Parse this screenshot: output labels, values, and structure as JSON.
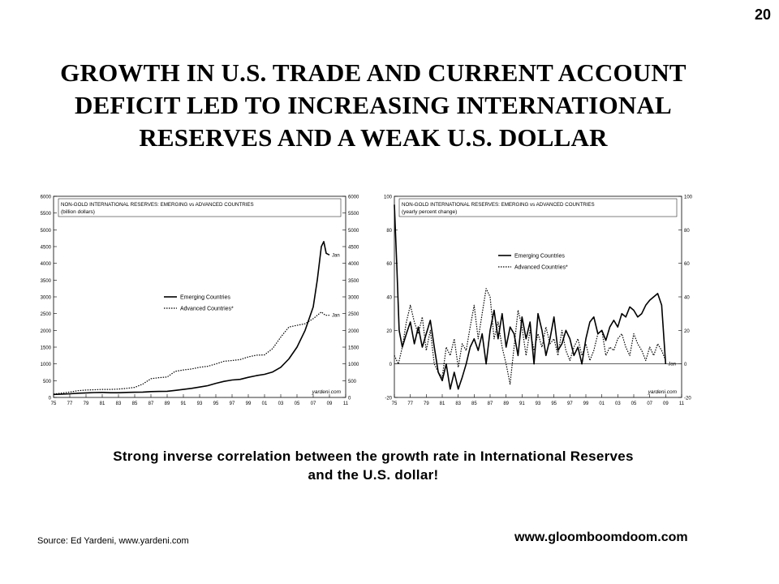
{
  "slide": {
    "page_number": "20",
    "title_lines": [
      "GROWTH IN U.S. TRADE AND CURRENT ACCOUNT",
      "DEFICIT LED TO INCREASING INTERNATIONAL",
      "RESERVES AND A WEAK U.S. DOLLAR"
    ],
    "caption_lines": [
      "Strong inverse correlation between the growth rate in International Reserves",
      "and the U.S. dollar!"
    ],
    "source": "Source: Ed Yardeni, www.yardeni.com",
    "website": "www.gloomboomdoom.com",
    "colors": {
      "background": "#ffffff",
      "text": "#000000",
      "chart_line": "#000000"
    }
  },
  "chart_data": [
    {
      "type": "line",
      "title": "NON-GOLD INTERNATIONAL RESERVES: EMERGING vs ADVANCED COUNTRIES",
      "subtitle": "(billion dollars)",
      "credit": "yardeni.com",
      "ylim": [
        0,
        6000
      ],
      "y_ticks": [
        "0",
        "500",
        "1000",
        "1500",
        "2000",
        "2500",
        "3000",
        "3500",
        "4000",
        "4500",
        "5000",
        "5500",
        "6000"
      ],
      "xlim": [
        1975,
        2011
      ],
      "x_ticks": [
        "75",
        "77",
        "79",
        "81",
        "83",
        "85",
        "87",
        "89",
        "91",
        "93",
        "95",
        "97",
        "99",
        "01",
        "03",
        "05",
        "07",
        "09",
        "11"
      ],
      "grid": false,
      "legend_position": "center",
      "end_labels": [
        "Jan",
        "Jan"
      ],
      "series": [
        {
          "name": "Emerging Countries",
          "style": "solid",
          "x": [
            1975,
            1976,
            1977,
            1978,
            1979,
            1980,
            1981,
            1982,
            1983,
            1984,
            1985,
            1986,
            1987,
            1988,
            1989,
            1990,
            1991,
            1992,
            1993,
            1994,
            1995,
            1996,
            1997,
            1998,
            1999,
            2000,
            2001,
            2002,
            2003,
            2004,
            2005,
            2006,
            2007,
            2007.5,
            2008,
            2008.3,
            2008.6,
            2009
          ],
          "values": [
            90,
            100,
            110,
            125,
            135,
            145,
            150,
            140,
            140,
            150,
            155,
            160,
            175,
            180,
            185,
            210,
            240,
            270,
            310,
            350,
            420,
            480,
            520,
            540,
            600,
            650,
            690,
            760,
            900,
            1150,
            1500,
            2000,
            2700,
            3500,
            4500,
            4650,
            4300,
            4250
          ]
        },
        {
          "name": "Advanced Countries*",
          "style": "dotted",
          "x": [
            1975,
            1976,
            1977,
            1978,
            1979,
            1980,
            1981,
            1982,
            1983,
            1984,
            1985,
            1986,
            1987,
            1988,
            1989,
            1990,
            1991,
            1992,
            1993,
            1994,
            1995,
            1996,
            1997,
            1998,
            1999,
            2000,
            2001,
            2002,
            2003,
            2004,
            2005,
            2006,
            2007,
            2008,
            2008.5,
            2009
          ],
          "values": [
            100,
            130,
            160,
            200,
            220,
            230,
            240,
            240,
            250,
            270,
            300,
            400,
            560,
            590,
            610,
            780,
            820,
            850,
            900,
            930,
            1000,
            1080,
            1100,
            1130,
            1210,
            1260,
            1270,
            1460,
            1800,
            2100,
            2150,
            2200,
            2350,
            2550,
            2450,
            2450
          ]
        }
      ]
    },
    {
      "type": "line",
      "title": "NON-GOLD INTERNATIONAL RESERVES: EMERGING vs ADVANCED COUNTRIES",
      "subtitle": "(yearly percent change)",
      "credit": "yardeni.com",
      "ylim": [
        -20,
        100
      ],
      "y_ticks": [
        "-20",
        "0",
        "20",
        "40",
        "60",
        "80",
        "100"
      ],
      "xlim": [
        1975,
        2011
      ],
      "x_ticks": [
        "75",
        "77",
        "79",
        "81",
        "83",
        "85",
        "87",
        "89",
        "91",
        "93",
        "95",
        "97",
        "99",
        "01",
        "03",
        "05",
        "07",
        "09",
        "11"
      ],
      "zero_line": true,
      "grid": false,
      "legend_position": "top-right",
      "end_labels": [
        "Jan"
      ],
      "series": [
        {
          "name": "Emerging Countries",
          "style": "solid",
          "x": [
            1975,
            1975.3,
            1975.6,
            1976,
            1976.5,
            1977,
            1977.5,
            1978,
            1978.5,
            1979,
            1979.5,
            1980,
            1980.5,
            1981,
            1981.5,
            1982,
            1982.5,
            1983,
            1983.5,
            1984,
            1984.5,
            1985,
            1985.5,
            1986,
            1986.5,
            1987,
            1987.5,
            1988,
            1988.5,
            1989,
            1989.5,
            1990,
            1990.5,
            1991,
            1991.5,
            1992,
            1992.5,
            1993,
            1993.5,
            1994,
            1994.5,
            1995,
            1995.5,
            1996,
            1996.5,
            1997,
            1997.5,
            1998,
            1998.5,
            1999,
            1999.5,
            2000,
            2000.5,
            2001,
            2001.5,
            2002,
            2002.5,
            2003,
            2003.5,
            2004,
            2004.5,
            2005,
            2005.5,
            2006,
            2006.5,
            2007,
            2007.5,
            2008,
            2008.5,
            2009
          ],
          "values": [
            95,
            60,
            20,
            10,
            18,
            25,
            12,
            22,
            10,
            18,
            26,
            10,
            -5,
            -10,
            0,
            -15,
            -5,
            -15,
            -8,
            0,
            10,
            15,
            8,
            18,
            0,
            20,
            32,
            15,
            30,
            10,
            22,
            18,
            5,
            28,
            15,
            25,
            0,
            30,
            20,
            5,
            15,
            28,
            8,
            12,
            20,
            15,
            5,
            10,
            0,
            15,
            25,
            28,
            18,
            20,
            14,
            22,
            26,
            22,
            30,
            28,
            34,
            32,
            28,
            30,
            35,
            38,
            40,
            42,
            35,
            0
          ]
        },
        {
          "name": "Advanced Countries*",
          "style": "dotted",
          "x": [
            1975,
            1975.5,
            1976,
            1976.5,
            1977,
            1977.5,
            1978,
            1978.5,
            1979,
            1979.5,
            1980,
            1980.5,
            1981,
            1981.5,
            1982,
            1982.5,
            1983,
            1983.5,
            1984,
            1984.5,
            1985,
            1985.5,
            1986,
            1986.5,
            1987,
            1987.5,
            1988,
            1988.5,
            1989,
            1989.5,
            1990,
            1990.5,
            1991,
            1991.5,
            1992,
            1992.5,
            1993,
            1993.5,
            1994,
            1994.5,
            1995,
            1995.5,
            1996,
            1996.5,
            1997,
            1997.5,
            1998,
            1998.5,
            1999,
            1999.5,
            2000,
            2000.5,
            2001,
            2001.5,
            2002,
            2002.5,
            2003,
            2003.5,
            2004,
            2004.5,
            2005,
            2005.5,
            2006,
            2006.5,
            2007,
            2007.5,
            2008,
            2008.5,
            2009
          ],
          "values": [
            5,
            0,
            10,
            25,
            35,
            25,
            18,
            28,
            8,
            20,
            0,
            -5,
            -8,
            10,
            5,
            15,
            -2,
            12,
            8,
            22,
            35,
            15,
            30,
            45,
            40,
            15,
            25,
            10,
            0,
            -12,
            10,
            32,
            22,
            5,
            20,
            8,
            18,
            10,
            22,
            12,
            15,
            5,
            20,
            8,
            2,
            10,
            15,
            5,
            12,
            2,
            8,
            18,
            20,
            5,
            10,
            8,
            15,
            18,
            10,
            5,
            18,
            12,
            8,
            2,
            10,
            5,
            12,
            8,
            2
          ]
        }
      ]
    }
  ]
}
